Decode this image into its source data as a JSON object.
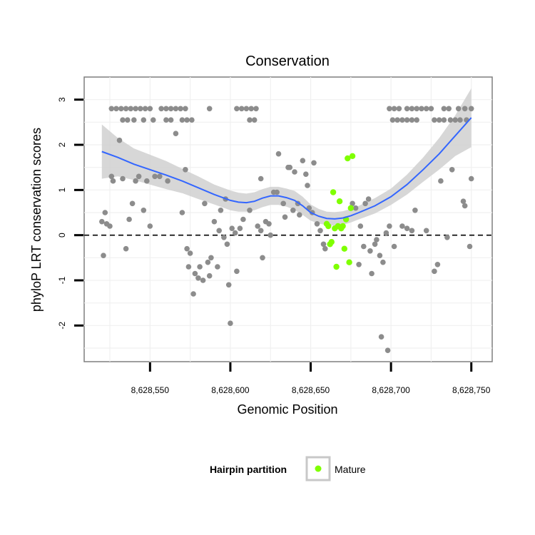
{
  "chart_data": {
    "type": "scatter",
    "title": "Conservation",
    "xlabel": "Genomic Position",
    "ylabel": "phyloP LRT conservation scores",
    "xlim": [
      8628509,
      8628763
    ],
    "ylim": [
      -2.8,
      3.5
    ],
    "x_ticks": [
      8628550,
      8628600,
      8628650,
      8628700,
      8628750
    ],
    "x_tick_labels": [
      "8,628,550",
      "8,628,600",
      "8,628,650",
      "8,628,700",
      "8,628,750"
    ],
    "y_ticks": [
      -2,
      -1,
      0,
      1,
      2,
      3
    ],
    "y_tick_labels": [
      "-2",
      "-1",
      "0",
      "1",
      "2",
      "3"
    ],
    "reference_line": 0,
    "grid": true,
    "legend": {
      "title": "Hairpin partition",
      "position": "bottom",
      "entries": [
        {
          "label": "Mature",
          "color": "#7fff00"
        }
      ]
    },
    "colors": {
      "other": "#8c8c8c",
      "mature": "#7fff00",
      "smooth": "#3366ff",
      "band": "#d0d0d0"
    },
    "series": [
      {
        "name": "Other",
        "points": [
          [
            8628526,
            2.8
          ],
          [
            8628529,
            2.8
          ],
          [
            8628532,
            2.8
          ],
          [
            8628535,
            2.8
          ],
          [
            8628538,
            2.8
          ],
          [
            8628541,
            2.8
          ],
          [
            8628544,
            2.8
          ],
          [
            8628547,
            2.8
          ],
          [
            8628550,
            2.8
          ],
          [
            8628533,
            2.55
          ],
          [
            8628536,
            2.55
          ],
          [
            8628540,
            2.55
          ],
          [
            8628546,
            2.55
          ],
          [
            8628552,
            2.55
          ],
          [
            8628557,
            2.8
          ],
          [
            8628560,
            2.8
          ],
          [
            8628563,
            2.8
          ],
          [
            8628566,
            2.8
          ],
          [
            8628569,
            2.8
          ],
          [
            8628572,
            2.8
          ],
          [
            8628560,
            2.55
          ],
          [
            8628563,
            2.55
          ],
          [
            8628570,
            2.55
          ],
          [
            8628573,
            2.55
          ],
          [
            8628576,
            2.55
          ],
          [
            8628587,
            2.8
          ],
          [
            8628604,
            2.8
          ],
          [
            8628607,
            2.8
          ],
          [
            8628610,
            2.8
          ],
          [
            8628613,
            2.8
          ],
          [
            8628616,
            2.8
          ],
          [
            8628612,
            2.55
          ],
          [
            8628615,
            2.55
          ],
          [
            8628699,
            2.8
          ],
          [
            8628702,
            2.8
          ],
          [
            8628705,
            2.8
          ],
          [
            8628710,
            2.8
          ],
          [
            8628713,
            2.8
          ],
          [
            8628716,
            2.8
          ],
          [
            8628719,
            2.8
          ],
          [
            8628722,
            2.8
          ],
          [
            8628725,
            2.8
          ],
          [
            8628733,
            2.8
          ],
          [
            8628736,
            2.8
          ],
          [
            8628742,
            2.8
          ],
          [
            8628746,
            2.8
          ],
          [
            8628750,
            2.8
          ],
          [
            8628701,
            2.55
          ],
          [
            8628704,
            2.55
          ],
          [
            8628707,
            2.55
          ],
          [
            8628710,
            2.55
          ],
          [
            8628713,
            2.55
          ],
          [
            8628716,
            2.55
          ],
          [
            8628727,
            2.55
          ],
          [
            8628730,
            2.55
          ],
          [
            8628733,
            2.55
          ],
          [
            8628737,
            2.55
          ],
          [
            8628740,
            2.55
          ],
          [
            8628743,
            2.55
          ],
          [
            8628747,
            2.55
          ],
          [
            8628520,
            0.3
          ],
          [
            8628521,
            -0.45
          ],
          [
            8628522,
            0.5
          ],
          [
            8628523,
            0.25
          ],
          [
            8628525,
            0.2
          ],
          [
            8628526,
            1.3
          ],
          [
            8628527,
            1.2
          ],
          [
            8628531,
            2.1
          ],
          [
            8628533,
            1.25
          ],
          [
            8628535,
            -0.3
          ],
          [
            8628537,
            0.35
          ],
          [
            8628539,
            0.7
          ],
          [
            8628541,
            1.2
          ],
          [
            8628543,
            1.3
          ],
          [
            8628546,
            0.55
          ],
          [
            8628548,
            1.2
          ],
          [
            8628550,
            0.2
          ],
          [
            8628553,
            1.3
          ],
          [
            8628556,
            1.3
          ],
          [
            8628561,
            1.2
          ],
          [
            8628566,
            2.25
          ],
          [
            8628570,
            0.5
          ],
          [
            8628572,
            1.45
          ],
          [
            8628573,
            -0.3
          ],
          [
            8628574,
            -0.7
          ],
          [
            8628575,
            -0.4
          ],
          [
            8628577,
            -1.3
          ],
          [
            8628578,
            -0.85
          ],
          [
            8628580,
            -0.95
          ],
          [
            8628581,
            -0.7
          ],
          [
            8628583,
            -1.0
          ],
          [
            8628584,
            0.7
          ],
          [
            8628586,
            -0.6
          ],
          [
            8628587,
            -0.9
          ],
          [
            8628588,
            -0.5
          ],
          [
            8628590,
            0.3
          ],
          [
            8628592,
            -0.7
          ],
          [
            8628593,
            0.1
          ],
          [
            8628594,
            0.55
          ],
          [
            8628596,
            -0.05
          ],
          [
            8628597,
            0.8
          ],
          [
            8628598,
            -0.2
          ],
          [
            8628599,
            -1.1
          ],
          [
            8628600,
            -1.95
          ],
          [
            8628601,
            0.15
          ],
          [
            8628603,
            0.05
          ],
          [
            8628604,
            -0.8
          ],
          [
            8628606,
            0.15
          ],
          [
            8628608,
            0.35
          ],
          [
            8628612,
            0.55
          ],
          [
            8628617,
            0.2
          ],
          [
            8628619,
            0.1
          ],
          [
            8628619,
            1.25
          ],
          [
            8628620,
            -0.5
          ],
          [
            8628622,
            0.3
          ],
          [
            8628624,
            0.25
          ],
          [
            8628625,
            0.0
          ],
          [
            8628627,
            0.95
          ],
          [
            8628629,
            0.95
          ],
          [
            8628630,
            1.8
          ],
          [
            8628633,
            0.7
          ],
          [
            8628634,
            0.4
          ],
          [
            8628636,
            1.5
          ],
          [
            8628637,
            1.5
          ],
          [
            8628639,
            0.55
          ],
          [
            8628640,
            1.4
          ],
          [
            8628642,
            0.7
          ],
          [
            8628643,
            0.45
          ],
          [
            8628645,
            1.65
          ],
          [
            8628647,
            1.35
          ],
          [
            8628648,
            1.1
          ],
          [
            8628649,
            0.6
          ],
          [
            8628651,
            0.5
          ],
          [
            8628652,
            1.6
          ],
          [
            8628654,
            0.25
          ],
          [
            8628656,
            0.1
          ],
          [
            8628658,
            -0.2
          ],
          [
            8628659,
            -0.3
          ],
          [
            8628676,
            0.7
          ],
          [
            8628678,
            0.6
          ],
          [
            8628680,
            -0.65
          ],
          [
            8628681,
            0.2
          ],
          [
            8628683,
            -0.25
          ],
          [
            8628684,
            0.7
          ],
          [
            8628686,
            0.8
          ],
          [
            8628687,
            -0.35
          ],
          [
            8628688,
            -0.85
          ],
          [
            8628690,
            -0.2
          ],
          [
            8628691,
            -0.1
          ],
          [
            8628693,
            -0.45
          ],
          [
            8628694,
            -2.25
          ],
          [
            8628695,
            -0.6
          ],
          [
            8628697,
            0.05
          ],
          [
            8628698,
            -2.55
          ],
          [
            8628699,
            0.2
          ],
          [
            8628702,
            -0.25
          ],
          [
            8628707,
            0.2
          ],
          [
            8628710,
            0.15
          ],
          [
            8628713,
            0.1
          ],
          [
            8628715,
            0.55
          ],
          [
            8628722,
            0.1
          ],
          [
            8628727,
            -0.8
          ],
          [
            8628729,
            -0.65
          ],
          [
            8628731,
            1.2
          ],
          [
            8628735,
            -0.05
          ],
          [
            8628738,
            1.45
          ],
          [
            8628745,
            0.75
          ],
          [
            8628746,
            0.65
          ],
          [
            8628749,
            -0.25
          ],
          [
            8628750,
            1.25
          ]
        ]
      },
      {
        "name": "Mature",
        "points": [
          [
            8628660,
            0.25
          ],
          [
            8628661,
            0.2
          ],
          [
            8628662,
            -0.2
          ],
          [
            8628663,
            -0.15
          ],
          [
            8628664,
            0.95
          ],
          [
            8628665,
            0.15
          ],
          [
            8628666,
            -0.7
          ],
          [
            8628667,
            0.2
          ],
          [
            8628668,
            0.75
          ],
          [
            8628669,
            0.15
          ],
          [
            8628670,
            0.2
          ],
          [
            8628671,
            -0.3
          ],
          [
            8628672,
            0.35
          ],
          [
            8628673,
            1.7
          ],
          [
            8628674,
            -0.6
          ],
          [
            8628675,
            0.6
          ],
          [
            8628676,
            1.75
          ]
        ]
      }
    ],
    "smooth": {
      "x": [
        8628520,
        8628530,
        8628540,
        8628550,
        8628560,
        8628570,
        8628580,
        8628590,
        8628600,
        8628605,
        8628610,
        8628615,
        8628620,
        8628625,
        8628630,
        8628635,
        8628640,
        8628645,
        8628650,
        8628655,
        8628660,
        8628665,
        8628670,
        8628675,
        8628680,
        8628690,
        8628700,
        8628710,
        8628720,
        8628730,
        8628740,
        8628750
      ],
      "y": [
        1.85,
        1.72,
        1.57,
        1.45,
        1.33,
        1.2,
        1.05,
        0.9,
        0.77,
        0.73,
        0.72,
        0.75,
        0.82,
        0.87,
        0.87,
        0.83,
        0.77,
        0.65,
        0.5,
        0.42,
        0.37,
        0.36,
        0.38,
        0.43,
        0.5,
        0.65,
        0.85,
        1.12,
        1.45,
        1.8,
        2.2,
        2.6
      ],
      "lower": [
        1.25,
        1.3,
        1.22,
        1.12,
        1.02,
        0.93,
        0.8,
        0.68,
        0.55,
        0.52,
        0.52,
        0.55,
        0.62,
        0.67,
        0.67,
        0.63,
        0.56,
        0.45,
        0.32,
        0.26,
        0.22,
        0.21,
        0.23,
        0.28,
        0.35,
        0.48,
        0.67,
        0.9,
        1.18,
        1.45,
        1.75,
        1.95
      ],
      "upper": [
        2.45,
        2.15,
        1.92,
        1.78,
        1.64,
        1.47,
        1.3,
        1.12,
        0.99,
        0.94,
        0.92,
        0.95,
        1.02,
        1.07,
        1.07,
        1.03,
        0.98,
        0.85,
        0.68,
        0.58,
        0.52,
        0.51,
        0.53,
        0.58,
        0.65,
        0.82,
        1.03,
        1.34,
        1.72,
        2.15,
        2.65,
        3.25
      ]
    }
  }
}
